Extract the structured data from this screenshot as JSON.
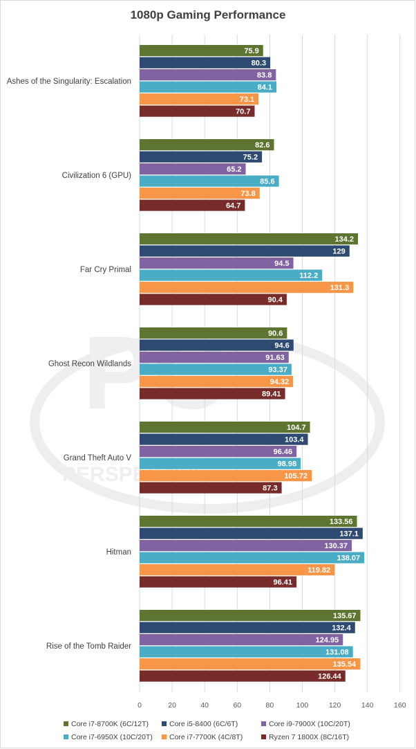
{
  "chart_data": {
    "type": "bar",
    "orientation": "horizontal",
    "title": "1080p Gaming Performance",
    "xlabel": "",
    "ylabel": "",
    "xlim": [
      0,
      160
    ],
    "x_ticks": [
      0,
      20,
      40,
      60,
      80,
      100,
      120,
      140,
      160
    ],
    "grid": true,
    "legend_position": "bottom",
    "categories": [
      "Ashes of the Singularity: Escalation",
      "Civilization 6 (GPU)",
      "Far Cry Primal",
      "Ghost Recon Wildlands",
      "Grand Theft Auto V",
      "Hitman",
      "Rise of the Tomb Raider"
    ],
    "series": [
      {
        "name": "Core i7-8700K (6C/12T)",
        "color": "#5e7532",
        "values": [
          75.9,
          82.6,
          134.2,
          90.6,
          104.7,
          133.56,
          135.67
        ],
        "labels": [
          "75.9",
          "82.6",
          "134.2",
          "90.6",
          "104.7",
          "133.56",
          "135.67"
        ]
      },
      {
        "name": "Core i5-8400 (6C/6T)",
        "color": "#2e4a72",
        "values": [
          80.3,
          75.2,
          129,
          94.6,
          103.4,
          137.1,
          132.4
        ],
        "labels": [
          "80.3",
          "75.2",
          "129",
          "94.6",
          "103.4",
          "137.1",
          "132.4"
        ]
      },
      {
        "name": "Core i9-7900X (10C/20T)",
        "color": "#8064a2",
        "values": [
          83.8,
          65.2,
          94.5,
          91.63,
          96.46,
          130.37,
          124.95
        ],
        "labels": [
          "83.8",
          "65.2",
          "94.5",
          "91.63",
          "96.46",
          "130.37",
          "124.95"
        ]
      },
      {
        "name": "Core i7-6950X (10C/20T)",
        "color": "#4bacc6",
        "values": [
          84.1,
          85.6,
          112.2,
          93.37,
          98.98,
          138.07,
          131.08
        ],
        "labels": [
          "84.1",
          "85.6",
          "112.2",
          "93.37",
          "98.98",
          "138.07",
          "131.08"
        ]
      },
      {
        "name": "Core i7-7700K (4C/8T)",
        "color": "#f79646",
        "values": [
          73.1,
          73.8,
          131.3,
          94.32,
          105.72,
          119.82,
          135.54
        ],
        "labels": [
          "73.1",
          "73.8",
          "131.3",
          "94.32",
          "105.72",
          "119.82",
          "135.54"
        ]
      },
      {
        "name": "Ryzen 7 1800X (8C/16T)",
        "color": "#772c2a",
        "values": [
          70.7,
          64.7,
          90.4,
          89.41,
          87.3,
          96.41,
          126.44
        ],
        "labels": [
          "70.7",
          "64.7",
          "90.4",
          "89.41",
          "87.3",
          "96.41",
          "126.44"
        ]
      }
    ]
  },
  "watermark": {
    "text": "PERSPECTIVE",
    "monogram": "PC"
  }
}
